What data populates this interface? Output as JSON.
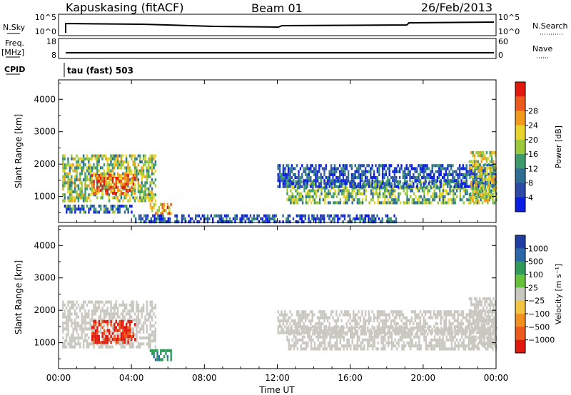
{
  "header": {
    "station": "Kapuskasing (fitACF)",
    "beam": "Beam 01",
    "date": "26/Feb/2013"
  },
  "status_panels": {
    "nsky_label": "N.Sky",
    "nsky_ticks": [
      "10^5",
      "10^0"
    ],
    "nsearch_label": "N.Search",
    "nsearch_ticks": [
      "10^5",
      "10^0"
    ],
    "freq_label": "Freq.",
    "freq_unit": "[MHz]",
    "freq_ticks": [
      "18",
      "8"
    ],
    "nave_label": "Nave",
    "nave_ticks": [
      "60",
      "0"
    ],
    "cpid_label": "CPID",
    "cpid_text": "tau (fast) 503"
  },
  "chart_data": [
    {
      "type": "heatmap",
      "name": "power-panel",
      "ylabel": "Slant Range [km]",
      "xlabel": "",
      "x_ticks": [
        "00:00",
        "04:00",
        "08:00",
        "12:00",
        "16:00",
        "20:00",
        "00:00"
      ],
      "y_ticks": [
        "1000",
        "2000",
        "3000",
        "4000"
      ],
      "ylim": [
        200,
        4600
      ],
      "xlim_hours": [
        0,
        24
      ],
      "colorbar": {
        "label": "Power [dB]",
        "ticks": [
          "4",
          "8",
          "12",
          "16",
          "20",
          "24",
          "28"
        ],
        "range": [
          0,
          32
        ],
        "colors": [
          "#0a1ee6",
          "#2e4aa8",
          "#2d6e92",
          "#3d9a6a",
          "#9cc83c",
          "#e8d42a",
          "#f29a1c",
          "#ee5a1c",
          "#e21a0e"
        ]
      },
      "regions": [
        {
          "label": "morning-ionospheric-band",
          "t_start": 0.2,
          "t_end": 5.3,
          "r_low": 900,
          "r_high": 2300,
          "power": 16
        },
        {
          "label": "morning-core",
          "t_start": 1.8,
          "t_end": 4.2,
          "r_low": 1100,
          "r_high": 1700,
          "power": 26
        },
        {
          "label": "lower-band",
          "t_start": 0.3,
          "t_end": 4.0,
          "r_low": 550,
          "r_high": 750,
          "power": 8
        },
        {
          "label": "mid-morning-echoes",
          "t_start": 5.0,
          "t_end": 6.2,
          "r_low": 500,
          "r_high": 800,
          "power": 22
        },
        {
          "label": "afternoon-band",
          "t_start": 12.5,
          "t_end": 24.0,
          "r_low": 850,
          "r_high": 1500,
          "power": 14
        },
        {
          "label": "afternoon-diffuse",
          "t_start": 12.0,
          "t_end": 24.0,
          "r_low": 1300,
          "r_high": 2000,
          "power": 6
        },
        {
          "label": "late-evening-rise",
          "t_start": 22.5,
          "t_end": 24.0,
          "r_low": 900,
          "r_high": 2400,
          "power": 18
        },
        {
          "label": "near-range",
          "t_start": 4.0,
          "t_end": 18.5,
          "r_low": 250,
          "r_high": 450,
          "power": 6
        }
      ]
    },
    {
      "type": "heatmap",
      "name": "velocity-panel",
      "ylabel": "Slant Range [km]",
      "xlabel": "Time UT",
      "x_ticks": [
        "00:00",
        "04:00",
        "08:00",
        "12:00",
        "16:00",
        "20:00",
        "00:00"
      ],
      "y_ticks": [
        "1000",
        "2000",
        "3000",
        "4000"
      ],
      "ylim": [
        200,
        4600
      ],
      "xlim_hours": [
        0,
        24
      ],
      "colorbar": {
        "label": "Velocity [m s⁻¹]",
        "ticks": [
          "1000",
          "500",
          "100",
          "25",
          "−25",
          "−100",
          "−500",
          "−1000"
        ],
        "colors": [
          "#1f3ea3",
          "#2a68a8",
          "#2f9a5a",
          "#66c23a",
          "#c8c8c0",
          "#f2c442",
          "#f29020",
          "#ee5a1c",
          "#e21a0e"
        ]
      },
      "regions": [
        {
          "label": "morning-ground-scatter",
          "t_start": 0.2,
          "t_end": 5.3,
          "r_low": 900,
          "r_high": 2300,
          "velocity": 0
        },
        {
          "label": "morning-flow",
          "t_start": 1.8,
          "t_end": 4.2,
          "r_low": 1000,
          "r_high": 1700,
          "velocity": -800
        },
        {
          "label": "mid-morning-echoes",
          "t_start": 5.0,
          "t_end": 6.2,
          "r_low": 500,
          "r_high": 800,
          "velocity": 200
        },
        {
          "label": "afternoon-ground-scatter",
          "t_start": 12.5,
          "t_end": 24.0,
          "r_low": 850,
          "r_high": 1500,
          "velocity": 0
        },
        {
          "label": "afternoon-diffuse",
          "t_start": 12.0,
          "t_end": 24.0,
          "r_low": 1300,
          "r_high": 2000,
          "velocity": 0
        },
        {
          "label": "late-evening-rise",
          "t_start": 22.5,
          "t_end": 24.0,
          "r_low": 900,
          "r_high": 2400,
          "velocity": 0
        }
      ]
    }
  ]
}
